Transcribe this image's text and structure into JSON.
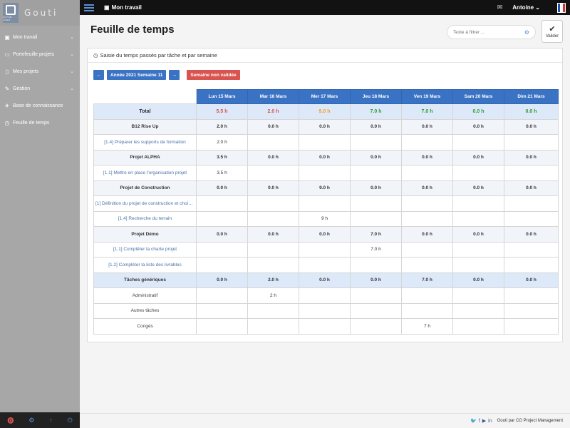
{
  "app": {
    "name": "Gouti",
    "logo_small": "FUTUR  LOGO"
  },
  "sidebar": {
    "items": [
      {
        "label": "Mon travail",
        "icon": "briefcase-icon",
        "glyph": "▣",
        "chevron": "⌄"
      },
      {
        "label": "Portefeuille projets",
        "icon": "folder-icon",
        "glyph": "▭",
        "chevron": "⌄"
      },
      {
        "label": "Mes projets",
        "icon": "file-icon",
        "glyph": "▯",
        "chevron": "⌄"
      },
      {
        "label": "Gestion",
        "icon": "wrench-icon",
        "glyph": "✎",
        "chevron": "⌄"
      },
      {
        "label": "Base de connaissance",
        "icon": "book-icon",
        "glyph": "✈",
        "chevron": ""
      },
      {
        "label": "Feuille de temps",
        "icon": "clock-icon",
        "glyph": "◷",
        "chevron": ""
      }
    ],
    "bottom": [
      {
        "icon": "info-icon",
        "glyph": "⓿",
        "color": "#d9534f"
      },
      {
        "icon": "settings-icon",
        "glyph": "⚙",
        "color": "#5b8fd6"
      },
      {
        "icon": "upload-icon",
        "glyph": "↑",
        "color": "#5b8fd6"
      },
      {
        "icon": "power-icon",
        "glyph": "⏻",
        "color": "#5b8fd6"
      }
    ]
  },
  "topbar": {
    "title": "Mon travail",
    "user": "Antoine",
    "user_chevron": "⌄",
    "mail_glyph": "✉"
  },
  "page": {
    "title": "Feuille de temps",
    "filter_placeholder": "Texte à filtrer ...",
    "validate_label": "Valider",
    "validate_glyph": "✔"
  },
  "panel": {
    "heading": "Saisie du temps passés par tâche et par semaine",
    "prev_glyph": "←",
    "next_glyph": "→",
    "week_label": "Année 2021 Semaine 11",
    "status": "Semaine non validée"
  },
  "timesheet": {
    "days": [
      "Lun 15 Mars",
      "Mar 16 Mars",
      "Mer 17 Mars",
      "Jeu 18 Mars",
      "Ven 19 Mars",
      "Sam 20 Mars",
      "Dim 21 Mars"
    ],
    "total": {
      "label": "Total",
      "values": [
        "5.5 h",
        "2.0 h",
        "9.0 h",
        "7.0 h",
        "7.0 h",
        "0.0 h",
        "0.0 h"
      ],
      "colors": [
        "#d9534f",
        "#d9534f",
        "#f0a12a",
        "#2e9b3a",
        "#2e9b3a",
        "#2e9b3a",
        "#2e9b3a"
      ]
    },
    "rows": [
      {
        "type": "project",
        "label": "B12 Rise Up",
        "values": [
          "2.0 h",
          "0.0 h",
          "0.0 h",
          "0.0 h",
          "0.0 h",
          "0.0 h",
          "0.0 h"
        ]
      },
      {
        "type": "task",
        "label": "[1.4] Préparer les supports de formation",
        "values": [
          "2.0 h",
          "",
          "",
          "",
          "",
          "",
          ""
        ]
      },
      {
        "type": "project",
        "label": "Projet ALPHA",
        "values": [
          "3.5 h",
          "0.0 h",
          "0.0 h",
          "0.0 h",
          "0.0 h",
          "0.0 h",
          "0.0 h"
        ]
      },
      {
        "type": "task",
        "label": "[1.1] Mettre en place l'organisation projet",
        "values": [
          "3.5 h",
          "",
          "",
          "",
          "",
          "",
          ""
        ]
      },
      {
        "type": "project",
        "label": "Projet de Construction",
        "values": [
          "0.0 h",
          "0.0 h",
          "9.0 h",
          "0.0 h",
          "0.0 h",
          "0.0 h",
          "0.0 h"
        ]
      },
      {
        "type": "task",
        "label": "[1] Définition du projet de construction et choix ...",
        "values": [
          "",
          "",
          "",
          "",
          "",
          "",
          ""
        ]
      },
      {
        "type": "task",
        "label": "[1.4] Recherche du terrain",
        "values": [
          "",
          "",
          "9 h",
          "",
          "",
          "",
          ""
        ]
      },
      {
        "type": "project",
        "label": "Projet Démo",
        "values": [
          "0.0 h",
          "0.0 h",
          "0.0 h",
          "7.0 h",
          "0.0 h",
          "0.0 h",
          "0.0 h"
        ]
      },
      {
        "type": "task",
        "label": "[1.1] Compléter la charte projet",
        "values": [
          "",
          "",
          "",
          "7.0 h",
          "",
          "",
          ""
        ]
      },
      {
        "type": "task",
        "label": "[1.2] Compléter la liste des livrables",
        "values": [
          "",
          "",
          "",
          "",
          "",
          "",
          ""
        ]
      },
      {
        "type": "generic",
        "label": "Tâches génériques",
        "values": [
          "0.0 h",
          "2.0 h",
          "0.0 h",
          "0.0 h",
          "7.0 h",
          "0.0 h",
          "0.0 h"
        ]
      },
      {
        "type": "plain",
        "label": "Administratif",
        "values": [
          "",
          "2 h",
          "",
          "",
          "",
          "",
          ""
        ]
      },
      {
        "type": "plain",
        "label": "Autres tâches",
        "values": [
          "",
          "",
          "",
          "",
          "",
          "",
          ""
        ]
      },
      {
        "type": "plain",
        "label": "Congés",
        "values": [
          "",
          "",
          "",
          "",
          "7 h",
          "",
          ""
        ]
      }
    ]
  },
  "footer": {
    "social": [
      "twitter-icon",
      "facebook-icon",
      "youtube-icon",
      "linkedin-icon"
    ],
    "social_glyphs": [
      "🐦",
      "f",
      "▶",
      "in"
    ],
    "credit": "Gouti par CG Project Management"
  },
  "flag_colors": [
    "#1f4fa8",
    "#ffffff",
    "#d93030"
  ]
}
